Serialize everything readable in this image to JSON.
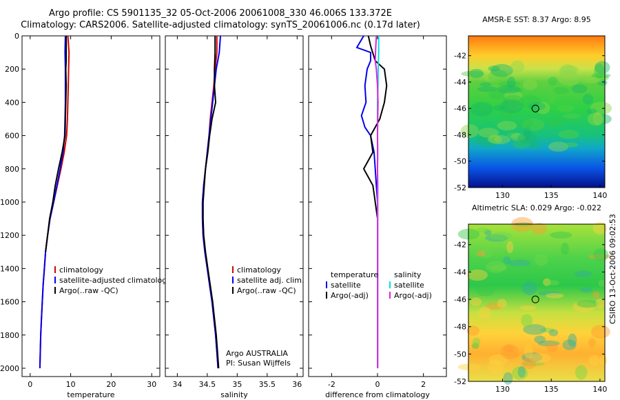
{
  "title": {
    "line1": "Argo profile: CS 5901135_32 05-Oct-2006 20061008_330 46.006S 133.372E",
    "line2": "Climatology: CARS2006. Satellite-adjusted climatology: synTS_20061006.nc (0.17d later)"
  },
  "side_label": "CSIRO 13-Oct-2006 09:02:53",
  "colors": {
    "red": "#d40000",
    "blue": "#0000ee",
    "black": "#000000",
    "cyan": "#00e0e0",
    "magenta": "#e020e0"
  },
  "chart_data": [
    {
      "type": "line",
      "name": "temperature-profile",
      "xlabel": "temperature",
      "ylabel": "",
      "xlim": [
        -2,
        32
      ],
      "ylim": [
        2050,
        0
      ],
      "xticks": [
        "0",
        "10",
        "20",
        "30"
      ],
      "xtick_values": [
        0,
        10,
        20,
        30
      ],
      "yticks": [
        "0",
        "200",
        "400",
        "600",
        "800",
        "1000",
        "1200",
        "1400",
        "1600",
        "1800",
        "2000"
      ],
      "ytick_values": [
        0,
        200,
        400,
        600,
        800,
        1000,
        1200,
        1400,
        1600,
        1800,
        2000
      ],
      "series": [
        {
          "name": "climatology",
          "color": "red",
          "points": [
            [
              9.3,
              0
            ],
            [
              9.6,
              100
            ],
            [
              9.5,
              200
            ],
            [
              9.4,
              300
            ],
            [
              9.3,
              400
            ],
            [
              9.2,
              500
            ],
            [
              9.0,
              600
            ],
            [
              8.4,
              700
            ],
            [
              7.6,
              800
            ],
            [
              6.7,
              900
            ],
            [
              5.8,
              1000
            ],
            [
              4.9,
              1100
            ],
            [
              4.3,
              1200
            ],
            [
              3.8,
              1300
            ],
            [
              3.5,
              1400
            ],
            [
              3.2,
              1500
            ],
            [
              3.0,
              1600
            ],
            [
              2.8,
              1700
            ],
            [
              2.6,
              1800
            ],
            [
              2.5,
              1900
            ],
            [
              2.4,
              2000
            ]
          ]
        },
        {
          "name": "satellite-adjusted climatology",
          "color": "blue",
          "points": [
            [
              8.7,
              0
            ],
            [
              8.6,
              100
            ],
            [
              8.7,
              200
            ],
            [
              8.7,
              300
            ],
            [
              8.7,
              400
            ],
            [
              8.6,
              500
            ],
            [
              8.5,
              600
            ],
            [
              8.1,
              700
            ],
            [
              7.4,
              800
            ],
            [
              6.6,
              900
            ],
            [
              5.8,
              1000
            ],
            [
              4.9,
              1100
            ],
            [
              4.3,
              1200
            ],
            [
              3.8,
              1300
            ],
            [
              3.5,
              1400
            ],
            [
              3.2,
              1500
            ],
            [
              3.0,
              1600
            ],
            [
              2.8,
              1700
            ],
            [
              2.6,
              1800
            ],
            [
              2.5,
              1900
            ],
            [
              2.4,
              2000
            ]
          ]
        },
        {
          "name": "Argo(..raw -QC)",
          "color": "black",
          "points": [
            [
              8.9,
              0
            ],
            [
              8.9,
              80
            ],
            [
              8.9,
              150
            ],
            [
              8.8,
              200
            ],
            [
              8.9,
              300
            ],
            [
              8.8,
              400
            ],
            [
              8.7,
              500
            ],
            [
              8.6,
              600
            ],
            [
              7.9,
              700
            ],
            [
              7.0,
              800
            ],
            [
              6.2,
              900
            ],
            [
              5.6,
              1000
            ],
            [
              4.8,
              1100
            ],
            [
              4.3,
              1200
            ],
            [
              3.8,
              1300
            ]
          ]
        }
      ],
      "legend": [
        "climatology",
        "satellite-adjusted climatology",
        "Argo(..raw -QC)"
      ],
      "legend_position": "bottom-right"
    },
    {
      "type": "line",
      "name": "salinity-profile",
      "xlabel": "salinity",
      "xlim": [
        33.8,
        36.1
      ],
      "ylim": [
        2050,
        0
      ],
      "xticks": [
        "34",
        "34.5",
        "35",
        "35.5",
        "36"
      ],
      "xtick_values": [
        34,
        34.5,
        35,
        35.5,
        36
      ],
      "series": [
        {
          "name": "climatology",
          "color": "red",
          "points": [
            [
              34.66,
              0
            ],
            [
              34.66,
              100
            ],
            [
              34.63,
              200
            ],
            [
              34.61,
              300
            ],
            [
              34.58,
              400
            ],
            [
              34.55,
              500
            ],
            [
              34.53,
              600
            ],
            [
              34.5,
              700
            ],
            [
              34.47,
              800
            ],
            [
              34.44,
              900
            ],
            [
              34.42,
              1000
            ],
            [
              34.42,
              1100
            ],
            [
              34.43,
              1200
            ],
            [
              34.46,
              1300
            ],
            [
              34.5,
              1400
            ],
            [
              34.54,
              1500
            ],
            [
              34.58,
              1600
            ],
            [
              34.61,
              1700
            ],
            [
              34.64,
              1800
            ],
            [
              34.66,
              1900
            ],
            [
              34.68,
              2000
            ]
          ]
        },
        {
          "name": "satellite adj. clim.",
          "color": "blue",
          "points": [
            [
              34.72,
              0
            ],
            [
              34.7,
              100
            ],
            [
              34.65,
              200
            ],
            [
              34.62,
              300
            ],
            [
              34.59,
              400
            ],
            [
              34.56,
              500
            ],
            [
              34.53,
              600
            ],
            [
              34.5,
              700
            ],
            [
              34.47,
              800
            ],
            [
              34.44,
              900
            ],
            [
              34.42,
              1000
            ],
            [
              34.42,
              1100
            ],
            [
              34.43,
              1200
            ],
            [
              34.46,
              1300
            ],
            [
              34.5,
              1400
            ],
            [
              34.54,
              1500
            ],
            [
              34.58,
              1600
            ],
            [
              34.61,
              1700
            ],
            [
              34.64,
              1800
            ],
            [
              34.66,
              1900
            ],
            [
              34.68,
              2000
            ]
          ]
        },
        {
          "name": "Argo(..raw -QC)",
          "color": "black",
          "points": [
            [
              34.63,
              0
            ],
            [
              34.63,
              100
            ],
            [
              34.62,
              200
            ],
            [
              34.62,
              300
            ],
            [
              34.64,
              400
            ],
            [
              34.58,
              500
            ],
            [
              34.54,
              600
            ],
            [
              34.51,
              700
            ],
            [
              34.47,
              800
            ],
            [
              34.45,
              900
            ],
            [
              34.43,
              1000
            ],
            [
              34.43,
              1100
            ],
            [
              34.44,
              1200
            ],
            [
              34.47,
              1300
            ],
            [
              34.51,
              1400
            ],
            [
              34.55,
              1500
            ],
            [
              34.59,
              1600
            ],
            [
              34.62,
              1700
            ],
            [
              34.65,
              1800
            ],
            [
              34.67,
              1900
            ],
            [
              34.69,
              2000
            ]
          ]
        }
      ],
      "legend": [
        "climatology",
        "satellite adj. clim.",
        "Argo(..raw -QC)"
      ],
      "legend_position": "bottom-right",
      "annotation": [
        "Argo AUSTRALIA",
        "PI: Susan Wijffels"
      ]
    },
    {
      "type": "line",
      "name": "difference-profile",
      "xlabel": "difference from climatology",
      "xlim": [
        -3,
        3
      ],
      "ylim": [
        2050,
        0
      ],
      "xticks": [
        "-2",
        "0",
        "2"
      ],
      "xtick_values": [
        -2,
        0,
        2
      ],
      "legend_groups": [
        {
          "title": "temperature",
          "items": [
            {
              "label": "satellite",
              "color": "blue"
            },
            {
              "label": "Argo(-adj)",
              "color": "black"
            }
          ]
        },
        {
          "title": "salinity",
          "items": [
            {
              "label": "satellite",
              "color": "cyan"
            },
            {
              "label": "Argo(-adj)",
              "color": "magenta"
            }
          ]
        }
      ],
      "series": [
        {
          "name": "temperature satellite",
          "color": "blue",
          "points": [
            [
              -0.6,
              0
            ],
            [
              -0.9,
              70
            ],
            [
              -0.3,
              100
            ],
            [
              -0.3,
              150
            ],
            [
              -0.45,
              200
            ],
            [
              -0.55,
              300
            ],
            [
              -0.5,
              400
            ],
            [
              -0.7,
              480
            ],
            [
              -0.55,
              550
            ],
            [
              -0.3,
              600
            ],
            [
              -0.15,
              700
            ],
            [
              -0.1,
              800
            ],
            [
              -0.05,
              900
            ],
            [
              0,
              1000
            ],
            [
              0,
              1200
            ],
            [
              0,
              1500
            ],
            [
              0,
              2000
            ]
          ]
        },
        {
          "name": "temperature Argo(-adj)",
          "color": "black",
          "points": [
            [
              -0.4,
              0
            ],
            [
              -0.3,
              60
            ],
            [
              -0.1,
              150
            ],
            [
              0.3,
              200
            ],
            [
              0.4,
              300
            ],
            [
              0.3,
              400
            ],
            [
              0.1,
              500
            ],
            [
              -0.3,
              600
            ],
            [
              -0.2,
              700
            ],
            [
              -0.6,
              800
            ],
            [
              -0.2,
              900
            ],
            [
              -0.1,
              1000
            ],
            [
              0.0,
              1100
            ],
            [
              0.0,
              1200
            ],
            [
              0.0,
              1300
            ]
          ]
        },
        {
          "name": "salinity satellite",
          "color": "cyan",
          "points": [
            [
              0.05,
              0
            ],
            [
              0.05,
              100
            ],
            [
              0.03,
              200
            ],
            [
              0.02,
              300
            ],
            [
              0,
              400
            ],
            [
              0,
              600
            ],
            [
              0,
              1000
            ],
            [
              0,
              1500
            ],
            [
              0,
              2000
            ]
          ]
        },
        {
          "name": "salinity Argo(-adj)",
          "color": "magenta",
          "points": [
            [
              -0.05,
              0
            ],
            [
              -0.08,
              80
            ],
            [
              -0.1,
              150
            ],
            [
              -0.05,
              200
            ],
            [
              0,
              300
            ],
            [
              0.02,
              400
            ],
            [
              0.01,
              500
            ],
            [
              0,
              600
            ],
            [
              0.01,
              700
            ],
            [
              0,
              800
            ],
            [
              0.01,
              900
            ],
            [
              0.01,
              1000
            ],
            [
              0.01,
              1200
            ],
            [
              0.01,
              1400
            ],
            [
              0.01,
              1600
            ],
            [
              0.01,
              1800
            ],
            [
              0.01,
              2000
            ]
          ]
        }
      ]
    },
    {
      "type": "heatmap",
      "name": "sst-map",
      "title": "AMSR-E SST: 8.37  Argo: 8.95",
      "xlim": [
        126.5,
        140.5
      ],
      "ylim": [
        -52,
        -40.5
      ],
      "xticks": [
        "130",
        "135",
        "140"
      ],
      "xtick_values": [
        130,
        135,
        140
      ],
      "yticks": [
        "-42",
        "-44",
        "-46",
        "-48",
        "-50",
        "-52"
      ],
      "ytick_values": [
        -42,
        -44,
        -46,
        -48,
        -50,
        -52
      ],
      "marker": {
        "lon": 133.372,
        "lat": -46.006
      },
      "gradient": [
        {
          "lat": -40.5,
          "color": "#ff7a10"
        },
        {
          "lat": -42.0,
          "color": "#ffcc2a"
        },
        {
          "lat": -43.0,
          "color": "#c9e24a"
        },
        {
          "lat": -44.0,
          "color": "#5fd040"
        },
        {
          "lat": -46.0,
          "color": "#2ed045"
        },
        {
          "lat": -48.0,
          "color": "#18c27a"
        },
        {
          "lat": -49.0,
          "color": "#10a8c8"
        },
        {
          "lat": -50.5,
          "color": "#0a55e6"
        },
        {
          "lat": -52.0,
          "color": "#04108a"
        }
      ]
    },
    {
      "type": "heatmap",
      "name": "sla-map",
      "title": "Altimetric SLA: 0.029  Argo: -0.022",
      "xlim": [
        126.5,
        140.5
      ],
      "ylim": [
        -52,
        -40.5
      ],
      "xticks": [
        "130",
        "135",
        "140"
      ],
      "xtick_values": [
        130,
        135,
        140
      ],
      "yticks": [
        "-42",
        "-44",
        "-46",
        "-48",
        "-50",
        "-52"
      ],
      "ytick_values": [
        -42,
        -44,
        -46,
        -48,
        -50,
        -52
      ],
      "marker": {
        "lon": 133.372,
        "lat": -46.006
      },
      "gradient": [
        {
          "lat": -40.5,
          "color": "#a8e23a"
        },
        {
          "lat": -43.0,
          "color": "#4ed24a"
        },
        {
          "lat": -45.0,
          "color": "#2cc84a"
        },
        {
          "lat": -47.0,
          "color": "#c8e040"
        },
        {
          "lat": -48.5,
          "color": "#ffd23a"
        },
        {
          "lat": -50.0,
          "color": "#ffb030"
        },
        {
          "lat": -52.0,
          "color": "#e8e048"
        }
      ]
    }
  ]
}
